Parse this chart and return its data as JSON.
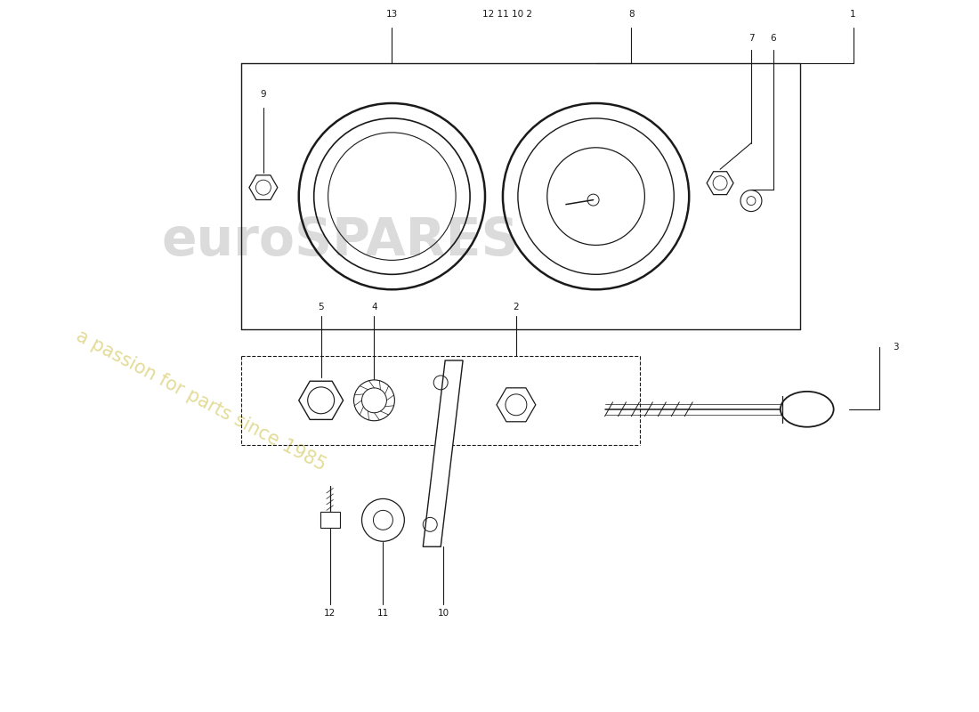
{
  "bg_color": "#ffffff",
  "lc": "#1a1a1a",
  "figsize": [
    11.0,
    8.0
  ],
  "dpi": 100,
  "wm1": "euroSPARES",
  "wm2": "a passion for parts since 1985",
  "wm1_color": "#b0b0b0",
  "wm2_color": "#c8b830",
  "wm1_alpha": 0.45,
  "wm2_alpha": 0.5
}
